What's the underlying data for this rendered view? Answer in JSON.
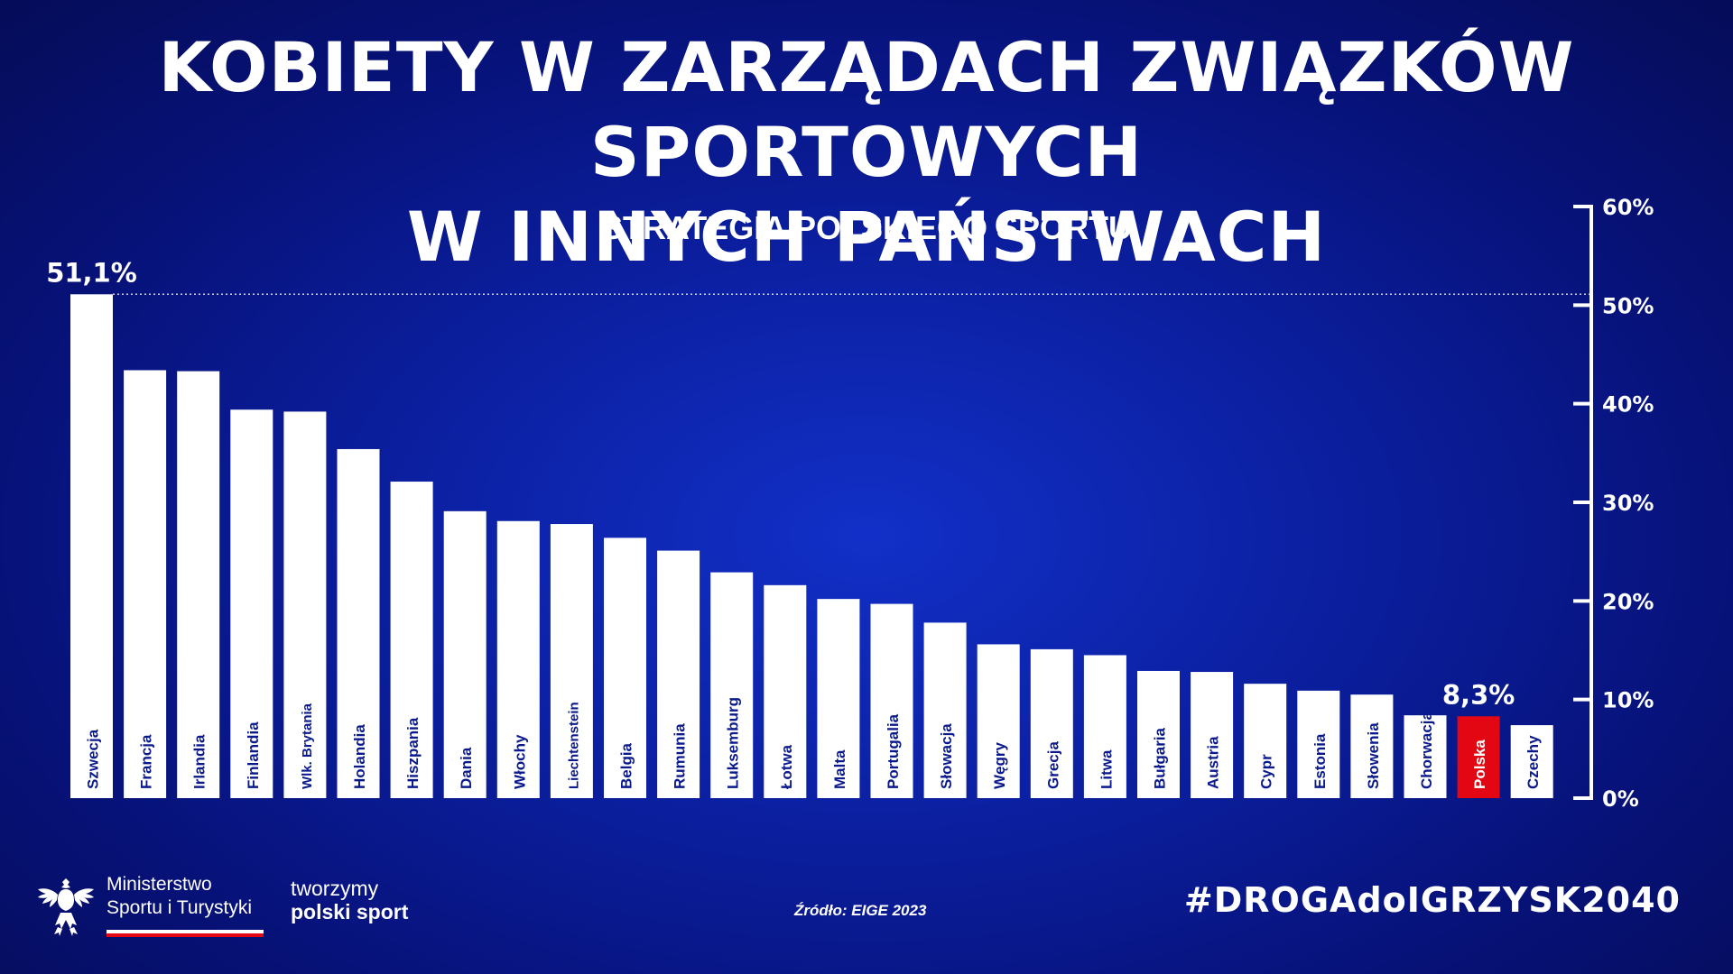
{
  "title_line1": "KOBIETY W ZARZĄDACH ZWIĄZKÓW SPORTOWYCH",
  "title_line2": "W INNYCH PAŃSTWACH",
  "subtitle": "STRATEGIA POLSKIEGO SPORTU",
  "source": "Źródło: EIGE 2023",
  "hashtag": "#DROGAdoIGRZYSK2040",
  "ministry": {
    "line1": "Ministerstwo",
    "line2": "Sportu i Turystyki"
  },
  "slogan": {
    "line1": "tworzymy",
    "line2": "polski sport"
  },
  "colors": {
    "bar": "#ffffff",
    "highlight": "#e30613",
    "background": "#0b1fa0"
  },
  "chart_data": {
    "type": "bar",
    "categories": [
      "Szwecja",
      "Francja",
      "Irlandia",
      "Finlandia",
      "Wlk. Brytania",
      "Holandia",
      "Hiszpania",
      "Dania",
      "Włochy",
      "Liechtenstein",
      "Belgia",
      "Rumunia",
      "Luksemburg",
      "Łotwa",
      "Malta",
      "Portugalia",
      "Słowacja",
      "Węgry",
      "Grecja",
      "Litwa",
      "Bułgaria",
      "Austria",
      "Cypr",
      "Estonia",
      "Słowenia",
      "Chorwacja",
      "Polska",
      "Czechy"
    ],
    "values": [
      51.1,
      43.4,
      43.3,
      39.4,
      39.2,
      35.4,
      32.1,
      29.1,
      28.1,
      27.8,
      26.4,
      25.1,
      22.9,
      21.6,
      20.2,
      19.7,
      17.8,
      15.6,
      15.1,
      14.5,
      12.9,
      12.8,
      11.6,
      10.9,
      10.5,
      8.4,
      8.3,
      7.4
    ],
    "highlight": "Polska",
    "annotations": [
      {
        "category": "Szwecja",
        "label": "51,1%"
      },
      {
        "category": "Polska",
        "label": "8,3%"
      }
    ],
    "reference_line": 51.1,
    "yticks": [
      "0%",
      "10%",
      "20%",
      "30%",
      "40%",
      "50%",
      "60%"
    ],
    "ylim": [
      0,
      60
    ],
    "axis_side": "right",
    "grid": false
  }
}
